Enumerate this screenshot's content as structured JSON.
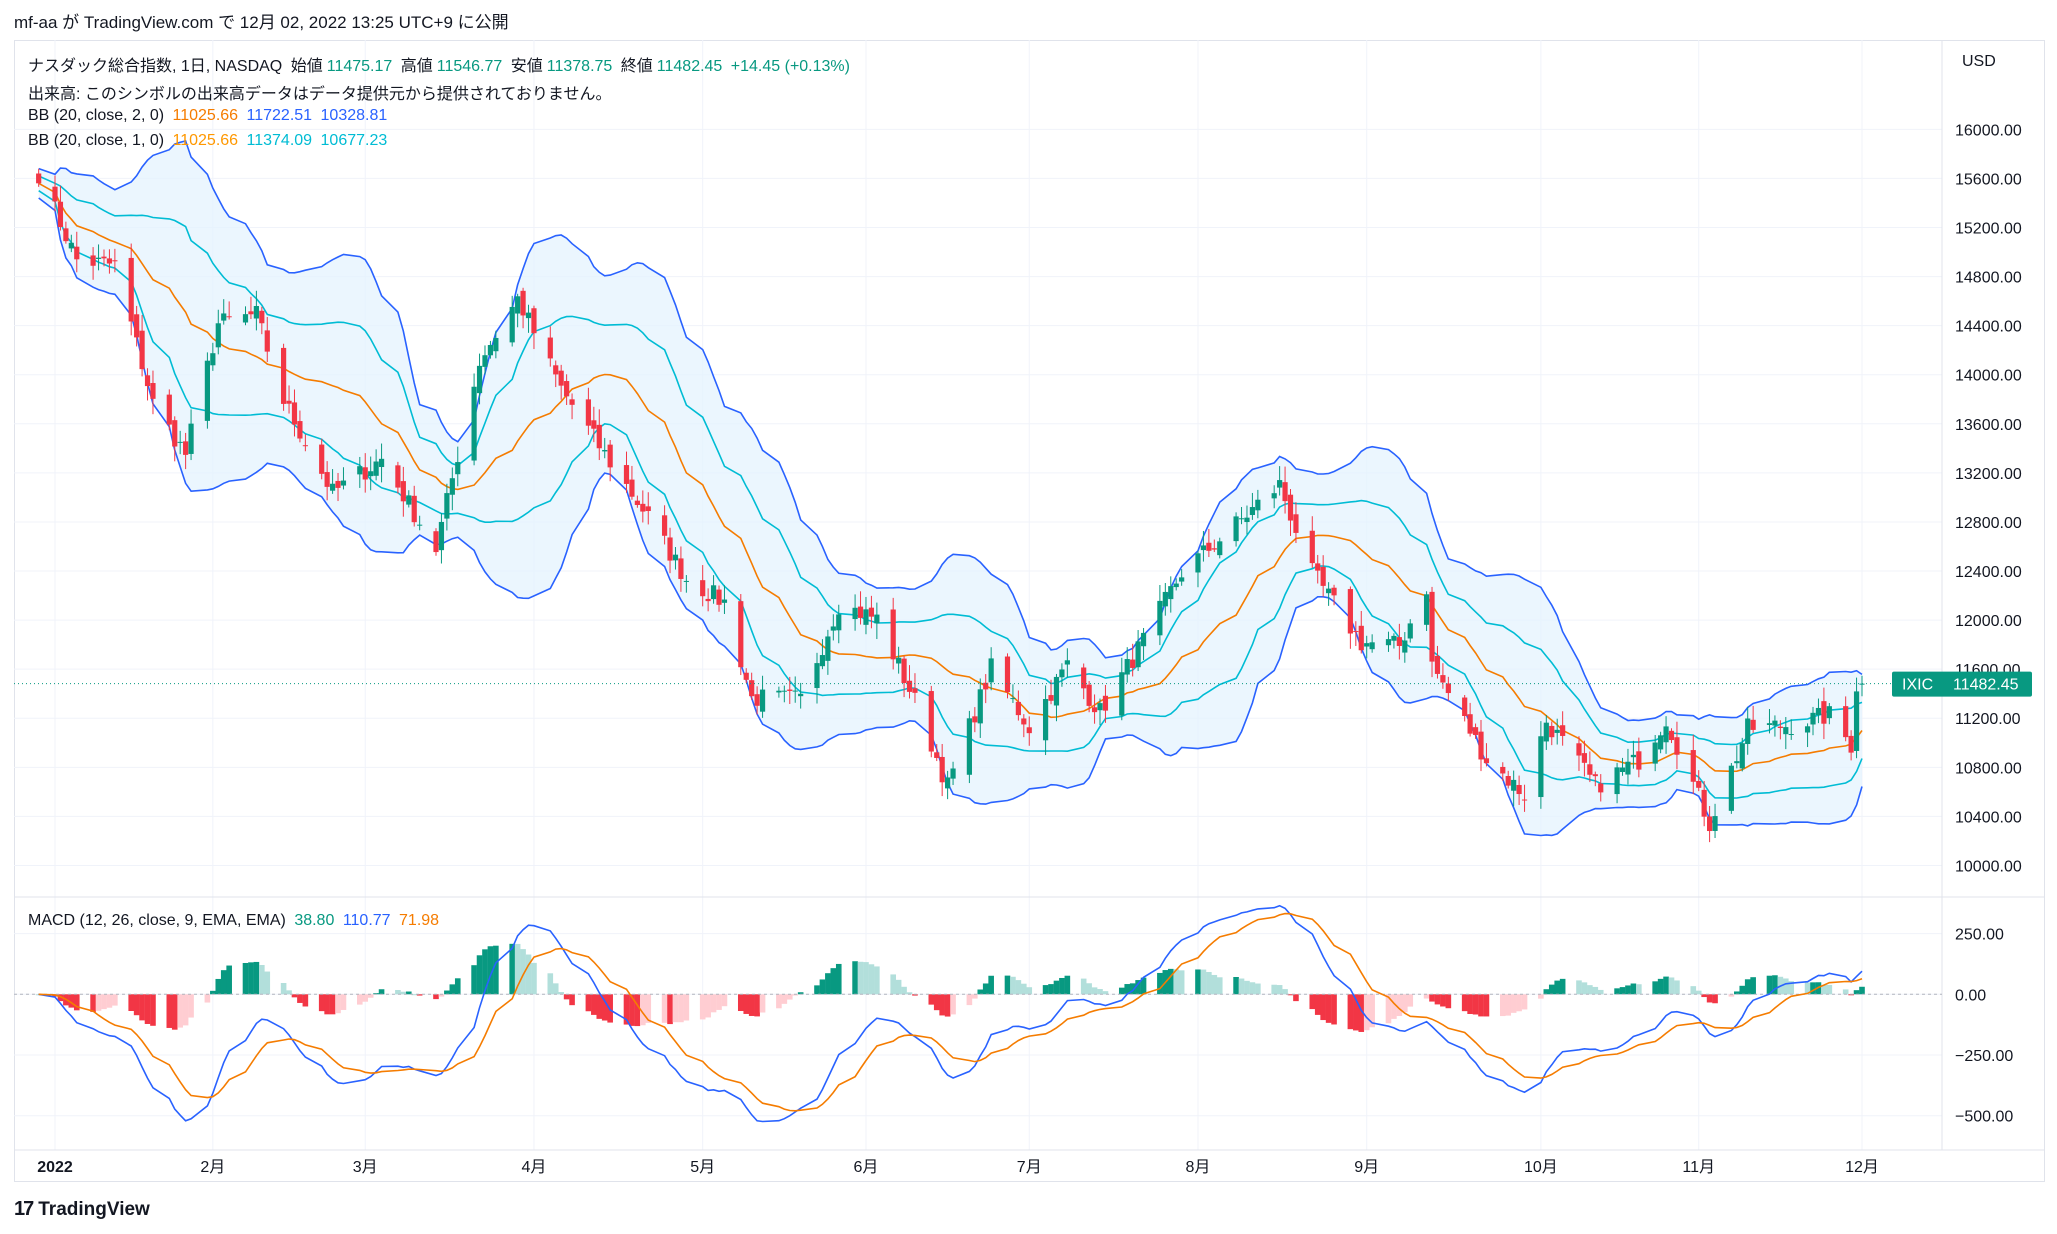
{
  "header": {
    "text": "mf-aa が TradingView.com で 12月 02, 2022 13:25 UTC+9 に公開"
  },
  "legend": {
    "title": "ナスダック総合指数, 1日, NASDAQ",
    "open_label": "始値",
    "open": "11475.17",
    "high_label": "高値",
    "high": "11546.77",
    "low_label": "安値",
    "low": "11378.75",
    "close_label": "終値",
    "close": "11482.45",
    "change": "+14.45 (+0.13%)",
    "volume_note": "出来高: このシンボルの出来高データはデータ提供元から提供されておりません。",
    "bb2_label": "BB (20, close, 2, 0)",
    "bb2_basis": "11025.66",
    "bb2_upper": "11722.51",
    "bb2_lower": "10328.81",
    "bb1_label": "BB (20, close, 1, 0)",
    "bb1_basis": "11025.66",
    "bb1_upper": "11374.09",
    "bb1_lower": "10677.23",
    "macd_label": "MACD (12, 26, close, 9, EMA, EMA)",
    "macd_hist": "38.80",
    "macd_line": "110.77",
    "macd_signal": "71.98"
  },
  "footer": {
    "brand": "TradingView",
    "logo_text": "17"
  },
  "colors": {
    "up": "#089981",
    "down": "#f23645",
    "up_light": "#b2dfdb",
    "down_light": "#ffcdd2",
    "bb2": "#2962ff",
    "bb1": "#00bcd4",
    "basis": "#f57c00",
    "fill": "#e3f2fd",
    "macd": "#2962ff",
    "signal": "#f57c00"
  },
  "chart_data": [
    {
      "type": "candlestick",
      "symbol": "IXIC",
      "currency": "USD",
      "last_price": "11482.45",
      "ylim": [
        9800,
        16500
      ],
      "y_ticks": [
        10000,
        10400,
        10800,
        11200,
        11600,
        12000,
        12400,
        12800,
        13200,
        13600,
        14000,
        14400,
        14800,
        15200,
        15600,
        16000
      ],
      "y_tick_labels": [
        "10000.00",
        "10400.00",
        "10800.00",
        "11200.00",
        "11600.00",
        "12000.00",
        "12400.00",
        "12800.00",
        "13200.00",
        "13600.00",
        "14000.00",
        "14400.00",
        "14800.00",
        "15200.00",
        "15600.00",
        "16000.00"
      ],
      "x_labels": [
        "2022",
        "2月",
        "3月",
        "4月",
        "5月",
        "6月",
        "7月",
        "8月",
        "9月",
        "10月",
        "11月",
        "12月"
      ],
      "x_label_dates": [
        "2022-01-03",
        "2022-02-01",
        "2022-03-01",
        "2022-04-01",
        "2022-05-02",
        "2022-06-01",
        "2022-07-01",
        "2022-08-01",
        "2022-09-01",
        "2022-10-03",
        "2022-11-01",
        "2022-12-01"
      ],
      "key_closes": [
        [
          "2021-12-31",
          15645
        ],
        [
          "2022-01-07",
          14935
        ],
        [
          "2022-01-14",
          14893
        ],
        [
          "2022-01-21",
          13768
        ],
        [
          "2022-01-27",
          13352
        ],
        [
          "2022-02-02",
          14417
        ],
        [
          "2022-02-09",
          14490
        ],
        [
          "2022-02-14",
          13790
        ],
        [
          "2022-02-23",
          13037
        ],
        [
          "2022-03-04",
          13313
        ],
        [
          "2022-03-14",
          12581
        ],
        [
          "2022-03-22",
          14109
        ],
        [
          "2022-03-29",
          14620
        ],
        [
          "2022-04-06",
          13888
        ],
        [
          "2022-04-14",
          13351
        ],
        [
          "2022-04-22",
          12839
        ],
        [
          "2022-04-29",
          12335
        ],
        [
          "2022-05-06",
          12145
        ],
        [
          "2022-05-11",
          11364
        ],
        [
          "2022-05-20",
          11355
        ],
        [
          "2022-05-27",
          12131
        ],
        [
          "2022-06-03",
          12013
        ],
        [
          "2022-06-10",
          11340
        ],
        [
          "2022-06-16",
          10647
        ],
        [
          "2022-06-24",
          11608
        ],
        [
          "2022-07-01",
          11128
        ],
        [
          "2022-07-08",
          11636
        ],
        [
          "2022-07-14",
          11252
        ],
        [
          "2022-07-22",
          11834
        ],
        [
          "2022-07-29",
          12391
        ],
        [
          "2022-08-05",
          12658
        ],
        [
          "2022-08-16",
          13103
        ],
        [
          "2022-08-22",
          12382
        ],
        [
          "2022-08-31",
          11816
        ],
        [
          "2022-09-07",
          11792
        ],
        [
          "2022-09-12",
          12267
        ],
        [
          "2022-09-13",
          11634
        ],
        [
          "2022-09-23",
          10868
        ],
        [
          "2022-09-30",
          10576
        ],
        [
          "2022-10-04",
          11176
        ],
        [
          "2022-10-13",
          10650
        ],
        [
          "2022-10-21",
          10860
        ],
        [
          "2022-10-26",
          11200
        ],
        [
          "2022-11-03",
          10343
        ],
        [
          "2022-11-10",
          11114
        ],
        [
          "2022-11-18",
          11146
        ],
        [
          "2022-11-25",
          11226
        ],
        [
          "2022-11-29",
          10984
        ],
        [
          "2022-11-30",
          11468
        ],
        [
          "2022-12-01",
          11482
        ]
      ]
    },
    {
      "type": "macd",
      "ylim": [
        -600,
        380
      ],
      "y_ticks": [
        -500,
        -250,
        0,
        250
      ],
      "y_tick_labels": [
        "−500.00",
        "−250.00",
        "0.00",
        "250.00"
      ]
    }
  ]
}
